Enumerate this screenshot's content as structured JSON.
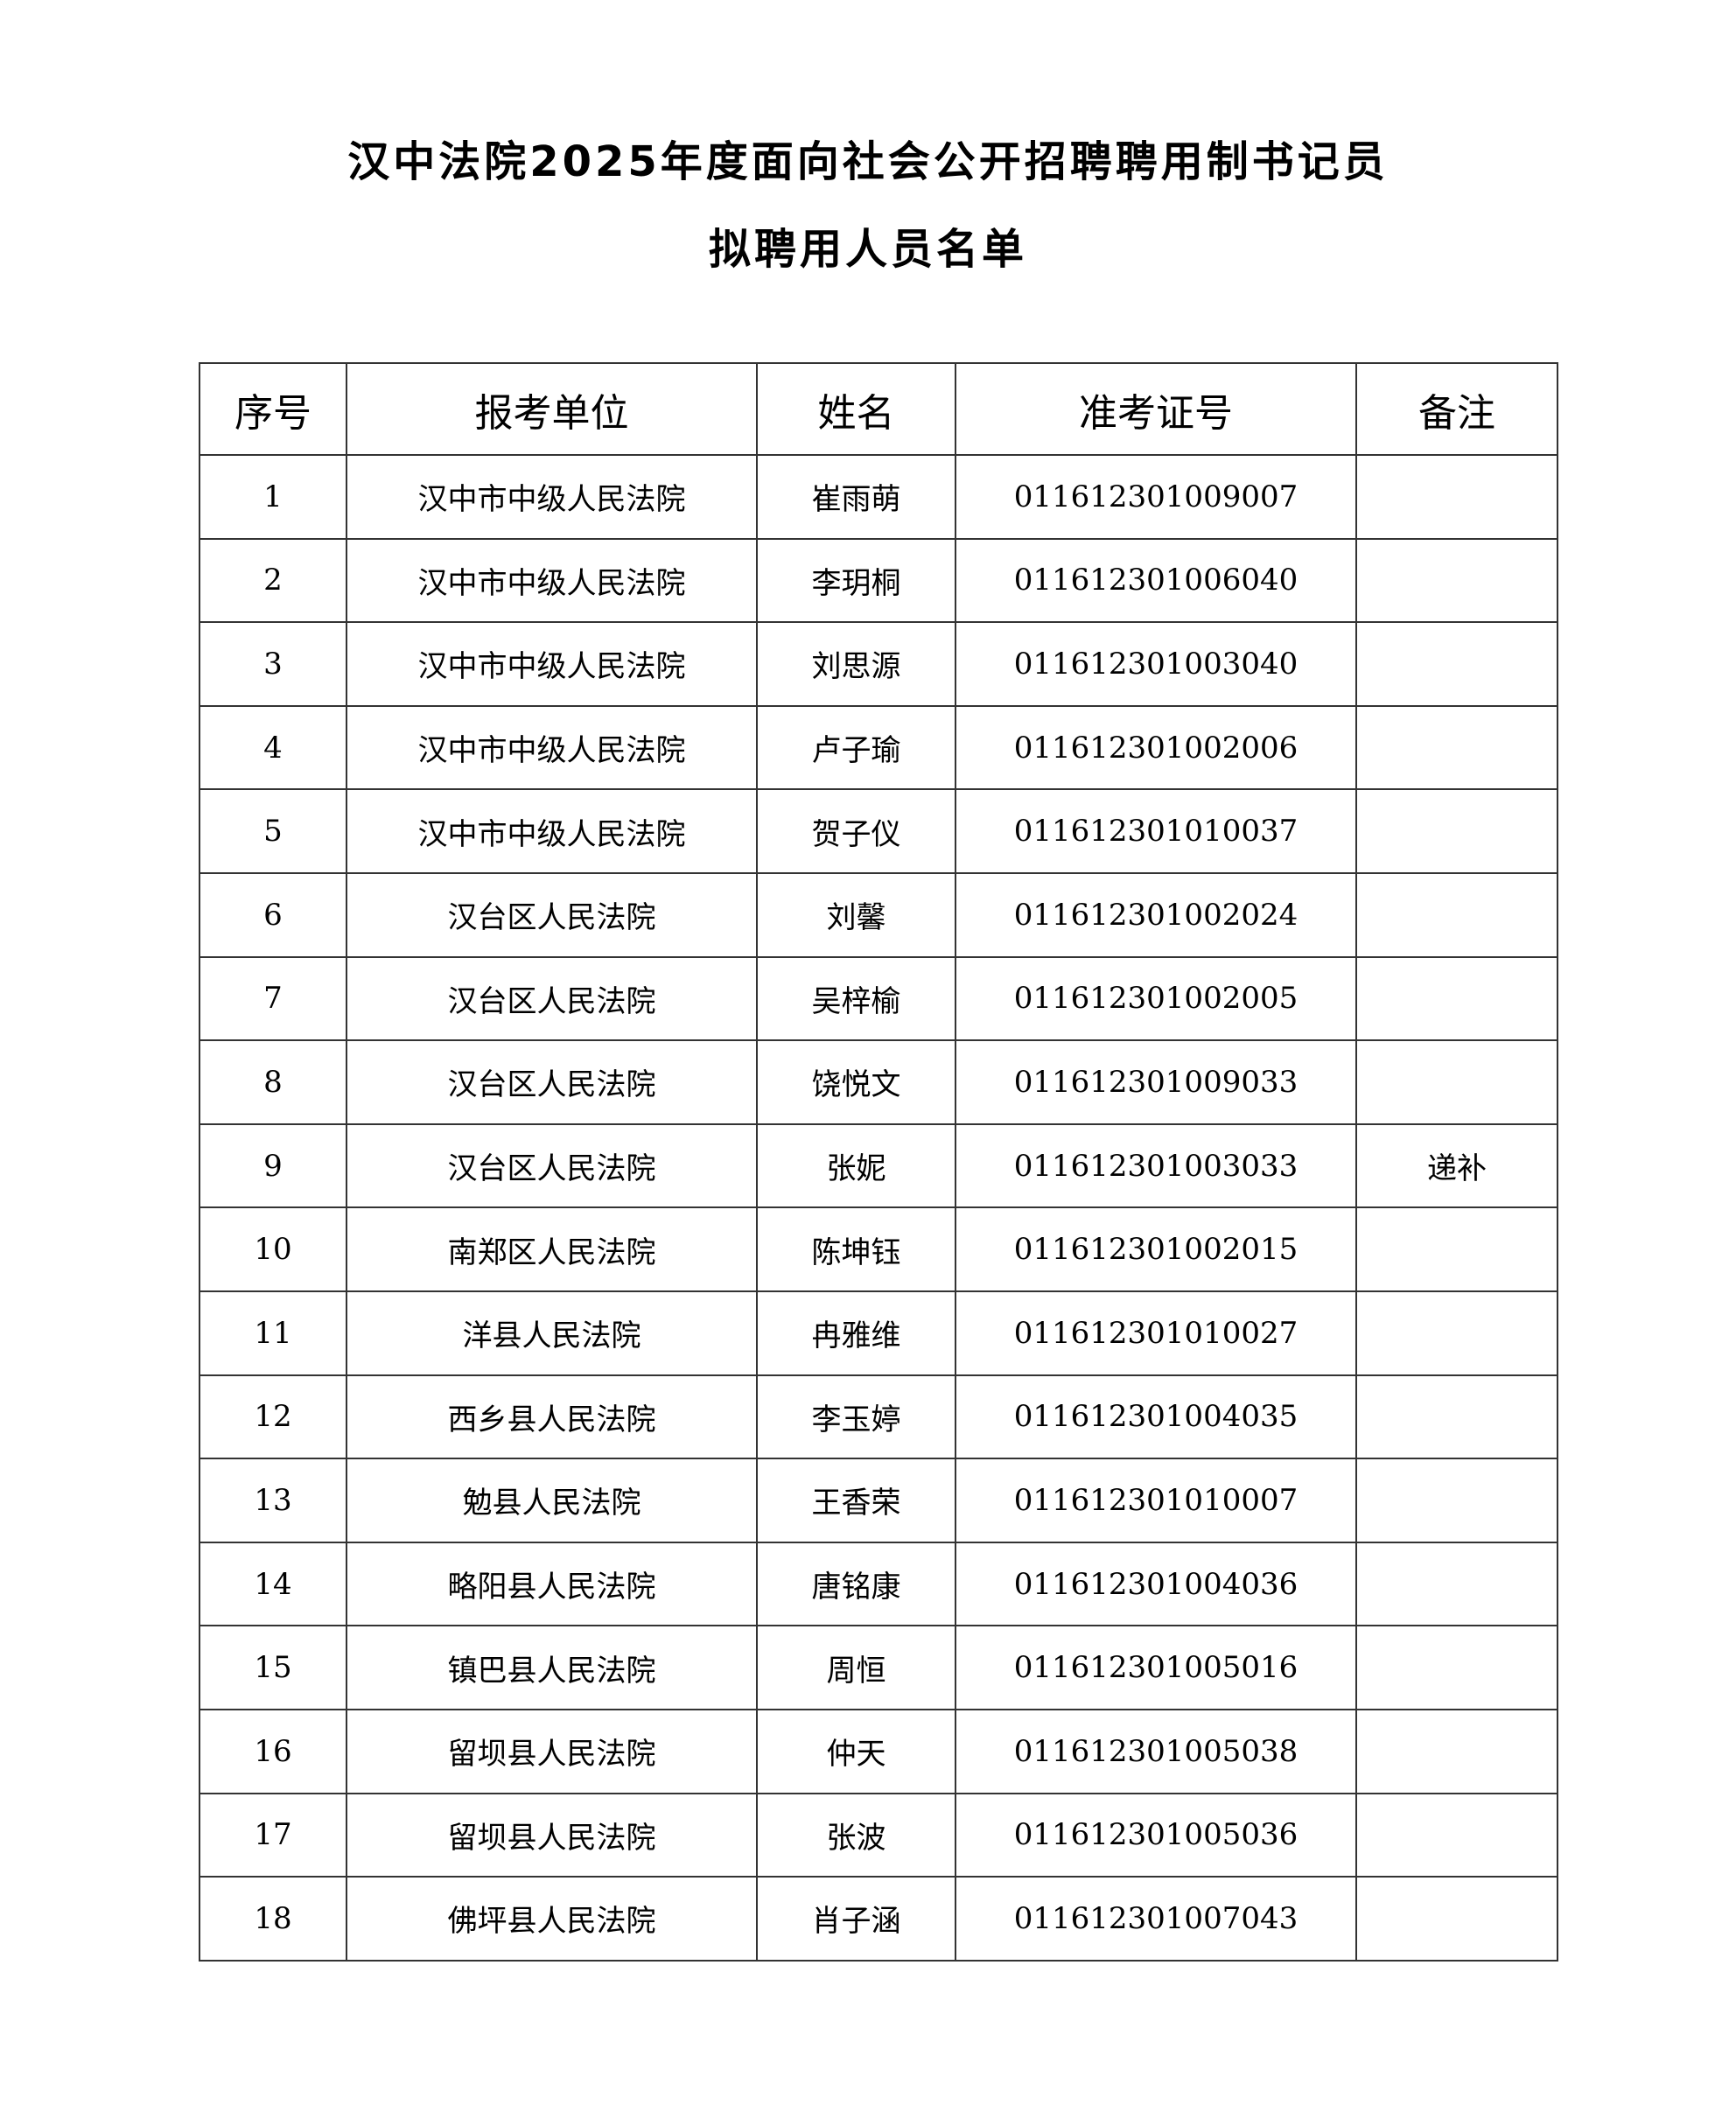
{
  "title_line1": "汉中法院2025年度面向社会公开招聘聘用制书记员",
  "title_line2": "拟聘用人员名单",
  "headers": [
    "序号",
    "报考单位",
    "姓名",
    "准考证号",
    "备注"
  ],
  "rows": [
    [
      "1",
      "汉中市中级人民法院",
      "崔雨萌",
      "011612301009007",
      ""
    ],
    [
      "2",
      "汉中市中级人民法院",
      "李玥桐",
      "011612301006040",
      ""
    ],
    [
      "3",
      "汉中市中级人民法院",
      "刘思源",
      "011612301003040",
      ""
    ],
    [
      "4",
      "汉中市中级人民法院",
      "卢子瑜",
      "011612301002006",
      ""
    ],
    [
      "5",
      "汉中市中级人民法院",
      "贺子仪",
      "011612301010037",
      ""
    ],
    [
      "6",
      "汉台区人民法院",
      "刘馨",
      "011612301002024",
      ""
    ],
    [
      "7",
      "汉台区人民法院",
      "吴梓榆",
      "011612301002005",
      ""
    ],
    [
      "8",
      "汉台区人民法院",
      "饶悦文",
      "011612301009033",
      ""
    ],
    [
      "9",
      "汉台区人民法院",
      "张妮",
      "011612301003033",
      "递补"
    ],
    [
      "10",
      "南郑区人民法院",
      "陈坤钰",
      "011612301002015",
      ""
    ],
    [
      "11",
      "洋县人民法院",
      "冉雅维",
      "011612301010027",
      ""
    ],
    [
      "12",
      "西乡县人民法院",
      "李玉婷",
      "011612301004035",
      ""
    ],
    [
      "13",
      "勉县人民法院",
      "王香荣",
      "011612301010007",
      ""
    ],
    [
      "14",
      "略阳县人民法院",
      "唐铭康",
      "011612301004036",
      ""
    ],
    [
      "15",
      "镇巴县人民法院",
      "周恒",
      "011612301005016",
      ""
    ],
    [
      "16",
      "留坝县人民法院",
      "仲天",
      "011612301005038",
      ""
    ],
    [
      "17",
      "留坝县人民法院",
      "张波",
      "011612301005036",
      ""
    ],
    [
      "18",
      "佛坪县人民法院",
      "肖子涵",
      "011612301007043",
      ""
    ]
  ]
}
